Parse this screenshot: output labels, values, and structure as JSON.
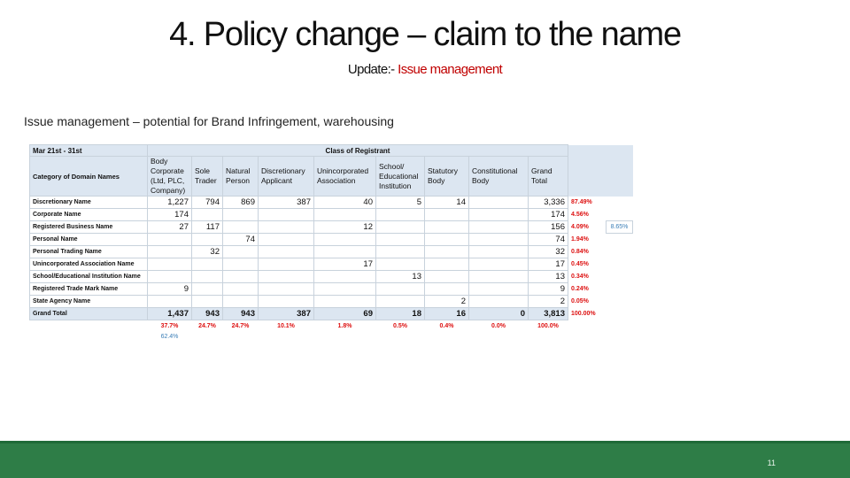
{
  "title": "4. Policy change – claim to the name",
  "subtitle": {
    "prefix": "Update:- ",
    "highlight": "Issue management"
  },
  "description": "Issue management – potential for Brand Infringement, warehousing",
  "table": {
    "period": "Mar 21st - 31st",
    "group_header": "Class of Registrant",
    "category_header": "Category of Domain Names",
    "columns": [
      "Body Corporate (Ltd, PLC, Company)",
      "Sole Trader",
      "Natural Person",
      "Discretionary Applicant",
      "Unincorporated Association",
      "School/ Educational Institution",
      "Statutory Body",
      "Constitutional Body",
      "Grand Total"
    ],
    "rows": [
      {
        "label": "Discretionary Name",
        "cells": [
          "1,227",
          "794",
          "869",
          "387",
          "40",
          "5",
          "14",
          "",
          "3,336"
        ],
        "pct": "87.49%"
      },
      {
        "label": "Corporate Name",
        "cells": [
          "174",
          "",
          "",
          "",
          "",
          "",
          "",
          "",
          "174"
        ],
        "pct": "4.56%"
      },
      {
        "label": "Registered Business Name",
        "cells": [
          "27",
          "117",
          "",
          "",
          "12",
          "",
          "",
          "",
          "156"
        ],
        "pct": "4.09%",
        "side": "8.65%"
      },
      {
        "label": "Personal Name",
        "cells": [
          "",
          "",
          "74",
          "",
          "",
          "",
          "",
          "",
          "74"
        ],
        "pct": "1.94%"
      },
      {
        "label": "Personal Trading Name",
        "cells": [
          "",
          "32",
          "",
          "",
          "",
          "",
          "",
          "",
          "32"
        ],
        "pct": "0.84%"
      },
      {
        "label": "Unincorporated Association Name",
        "cells": [
          "",
          "",
          "",
          "",
          "17",
          "",
          "",
          "",
          "17"
        ],
        "pct": "0.45%"
      },
      {
        "label": "School/Educational Institution Name",
        "cells": [
          "",
          "",
          "",
          "",
          "",
          "13",
          "",
          "",
          "13"
        ],
        "pct": "0.34%"
      },
      {
        "label": "Registered Trade Mark Name",
        "cells": [
          "9",
          "",
          "",
          "",
          "",
          "",
          "",
          "",
          "9"
        ],
        "pct": "0.24%"
      },
      {
        "label": "State Agency Name",
        "cells": [
          "",
          "",
          "",
          "",
          "",
          "",
          "2",
          "",
          "2"
        ],
        "pct": "0.05%"
      }
    ],
    "total": {
      "label": "Grand Total",
      "cells": [
        "1,437",
        "943",
        "943",
        "387",
        "69",
        "18",
        "16",
        "0",
        "3,813"
      ],
      "pct": "100.00%"
    },
    "column_pcts": [
      "37.7%",
      "24.7%",
      "24.7%",
      "10.1%",
      "1.8%",
      "0.5%",
      "0.4%",
      "0.0%",
      "100.0%"
    ],
    "combined_pct": "62.4%"
  },
  "slide_number": "11",
  "colors": {
    "footer": "#2e7d47",
    "highlight": "#c00000",
    "header_fill": "#dce6f1",
    "percent_red": "#dd1111"
  }
}
